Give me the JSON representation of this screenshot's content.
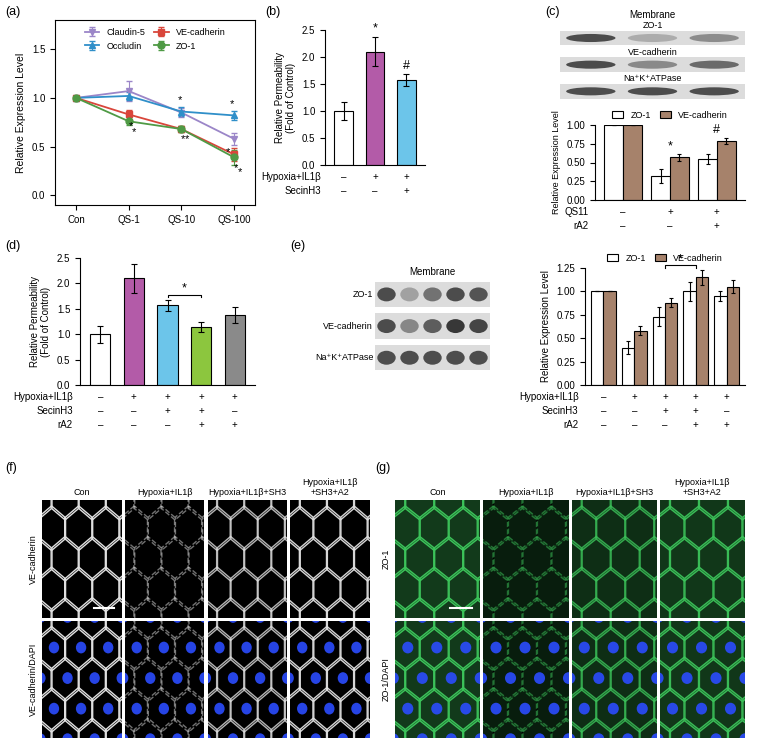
{
  "chart_data": [
    {
      "type": "line",
      "title": "(a)",
      "categories": [
        "Con",
        "QS-1",
        "QS-10",
        "QS-100"
      ],
      "y_label": "Relative Expression Level",
      "ylim": [
        -0.1,
        1.8
      ],
      "yticks": [
        {
          "value": 0,
          "label": "0.0"
        },
        {
          "value": 0.5,
          "label": "0.5"
        },
        {
          "value": 1,
          "label": "1.0"
        },
        {
          "value": 1.5,
          "label": "1.5"
        }
      ],
      "legend": "upper center",
      "series": [
        {
          "name": "Claudin-5",
          "color": "#9b86c8",
          "marker": "triangle_down",
          "values": [
            1.0,
            1.07,
            0.85,
            0.58
          ],
          "errors": [
            0,
            0.1,
            0.05,
            0.06
          ],
          "significance": [
            null,
            null,
            null,
            "*"
          ]
        },
        {
          "name": "Occludin",
          "color": "#2f8fc9",
          "marker": "triangle_up",
          "values": [
            1.0,
            1.02,
            0.86,
            0.82
          ],
          "errors": [
            0,
            0.04,
            0.05,
            0.05
          ],
          "significance": [
            null,
            null,
            "*",
            "*"
          ]
        },
        {
          "name": "VE-cadherin",
          "color": "#d9463b",
          "marker": "square",
          "values": [
            1.0,
            0.83,
            0.68,
            0.42
          ],
          "errors": [
            0,
            0.05,
            0.03,
            0.07
          ],
          "significance": [
            null,
            "*",
            "*",
            "*"
          ]
        },
        {
          "name": "ZO-1",
          "color": "#4f9a45",
          "marker": "circle",
          "values": [
            1.0,
            0.76,
            0.68,
            0.39
          ],
          "errors": [
            0,
            0.04,
            0.03,
            0.08
          ],
          "significance": [
            null,
            "*",
            "*",
            "*"
          ]
        }
      ]
    },
    {
      "type": "bar",
      "title": "(b)",
      "categories": [
        null,
        null,
        null
      ],
      "values": [
        1.0,
        2.1,
        1.57
      ],
      "errors": [
        0.17,
        0.27,
        0.11
      ],
      "colors": [
        "#ffffff",
        "#b35ba8",
        "#6cc5ea"
      ],
      "y_label": "Relative Permeability\n(Fold of Control)",
      "ylim": [
        0,
        2.5
      ],
      "yticks": [
        {
          "value": 0,
          "label": "0.0"
        },
        {
          "value": 0.5,
          "label": "0.5"
        },
        {
          "value": 1,
          "label": "1.0"
        },
        {
          "value": 1.5,
          "label": "1.5"
        },
        {
          "value": 2,
          "label": "2.0"
        },
        {
          "value": 2.5,
          "label": "2.5"
        }
      ],
      "tick_labels": "y",
      "significance": [
        null,
        "*",
        "#"
      ],
      "conditions": [
        {
          "label": "Hypoxia+IL1β",
          "signs": [
            "–",
            "+",
            "+"
          ]
        },
        {
          "label": "SecinH3",
          "signs": [
            "–",
            "–",
            "+"
          ]
        }
      ]
    },
    {
      "type": "bar",
      "title": "(c)",
      "categories": [
        null,
        null,
        null
      ],
      "series": [
        {
          "name": "ZO-1",
          "color": "#ffffff",
          "values": [
            1.0,
            0.32,
            0.55
          ],
          "errors": [
            0,
            0.09,
            0.07
          ]
        },
        {
          "name": "VE-cadherin",
          "color": "#a6826b",
          "values": [
            1.0,
            0.57,
            0.79
          ],
          "errors": [
            0,
            0.05,
            0.04
          ]
        }
      ],
      "y_label": "Relative Expression Level",
      "ylim": [
        0,
        1.0
      ],
      "yticks": [
        {
          "value": 0,
          "label": "0.00"
        },
        {
          "value": 0.25,
          "label": "0.25"
        },
        {
          "value": 0.5,
          "label": "0.50"
        },
        {
          "value": 0.75,
          "label": "0.75"
        },
        {
          "value": 1,
          "label": "1.00"
        }
      ],
      "tick_labels": "y",
      "legend": "top",
      "significance": [
        null,
        "*",
        "#"
      ],
      "conditions": [
        {
          "label": "QS11",
          "signs": [
            "–",
            "+",
            "+"
          ]
        },
        {
          "label": "rA2",
          "signs": [
            "–",
            "–",
            "+"
          ]
        }
      ],
      "blot": {
        "header": "Membrane",
        "rows": [
          "ZO-1",
          "VE-cadherin",
          "Na⁺K⁺ATPase"
        ]
      }
    },
    {
      "type": "bar",
      "title": "(d)",
      "categories": [
        null,
        null,
        null,
        null,
        null
      ],
      "values": [
        1.0,
        2.1,
        1.57,
        1.15,
        1.38
      ],
      "errors": [
        0.17,
        0.28,
        0.11,
        0.1,
        0.15
      ],
      "colors": [
        "#ffffff",
        "#b35ba8",
        "#6cc5ea",
        "#8cc63e",
        "#8a8a8a"
      ],
      "y_label": "Relative Permeability\n(Fold of Control)",
      "ylim": [
        0,
        2.5
      ],
      "yticks": [
        {
          "value": 0,
          "label": "0.0"
        },
        {
          "value": 0.5,
          "label": "0.5"
        },
        {
          "value": 1,
          "label": "1.0"
        },
        {
          "value": 1.5,
          "label": "1.5"
        },
        {
          "value": 2,
          "label": "2.0"
        },
        {
          "value": 2.5,
          "label": "2.5"
        }
      ],
      "tick_labels": "y",
      "brackets": [
        {
          "from": 2,
          "to": 3,
          "text": "*"
        }
      ],
      "conditions": [
        {
          "label": "Hypoxia+IL1β",
          "signs": [
            "–",
            "+",
            "+",
            "+",
            "+"
          ]
        },
        {
          "label": "SecinH3",
          "signs": [
            "–",
            "–",
            "+",
            "+",
            "–"
          ]
        },
        {
          "label": "rA2",
          "signs": [
            "–",
            "–",
            "–",
            "+",
            "+"
          ]
        }
      ]
    },
    {
      "type": "bar",
      "title": "(e)",
      "categories": [
        null,
        null,
        null,
        null,
        null
      ],
      "series": [
        {
          "name": "ZO-1",
          "color": "#ffffff",
          "values": [
            1.0,
            0.4,
            0.73,
            1.0,
            0.95
          ],
          "errors": [
            0,
            0.07,
            0.1,
            0.1,
            0.05
          ]
        },
        {
          "name": "VE-cadherin",
          "color": "#a6826b",
          "values": [
            1.0,
            0.58,
            0.88,
            1.15,
            1.05
          ],
          "errors": [
            0,
            0.05,
            0.05,
            0.08,
            0.07
          ]
        }
      ],
      "y_label": "Relative Expression Level",
      "ylim": [
        0,
        1.25
      ],
      "yticks": [
        {
          "value": 0,
          "label": "0.00"
        },
        {
          "value": 0.25,
          "label": "0.25"
        },
        {
          "value": 0.5,
          "label": "0.50"
        },
        {
          "value": 0.75,
          "label": "0.75"
        },
        {
          "value": 1,
          "label": "1.00"
        },
        {
          "value": 1.25,
          "label": "1.25"
        }
      ],
      "tick_labels": "y",
      "legend": "top",
      "brackets": [
        {
          "from": 2,
          "to": 3,
          "text": "*"
        }
      ],
      "conditions": [
        {
          "label": "Hypoxia+IL1β",
          "signs": [
            "–",
            "+",
            "+",
            "+",
            "+"
          ]
        },
        {
          "label": "SecinH3",
          "signs": [
            "–",
            "–",
            "+",
            "+",
            "–"
          ]
        },
        {
          "label": "rA2",
          "signs": [
            "–",
            "–",
            "–",
            "+",
            "+"
          ]
        }
      ],
      "blot": {
        "header": "Membrane",
        "rows": [
          "ZO-1",
          "VE-cadherin",
          "Na⁺K⁺ATPase"
        ]
      }
    }
  ],
  "micrographs": [
    {
      "title": "(f)",
      "columns": [
        "Con",
        "Hypoxia+IL1β",
        "Hypoxia+IL1β+SH3",
        "Hypoxia+IL1β\n+SH3+A2"
      ],
      "rows": [
        "VE-cadherin",
        "VE-cadherin/DAPI"
      ],
      "color": "#e0e0e0"
    },
    {
      "title": "(g)",
      "columns": [
        "Con",
        "Hypoxia+IL1β",
        "Hypoxia+IL1β+SH3",
        "Hypoxia+IL1β\n+SH3+A2"
      ],
      "rows": [
        "ZO-1",
        "ZO-1/DAPI"
      ],
      "color": "#3cc35a"
    }
  ]
}
